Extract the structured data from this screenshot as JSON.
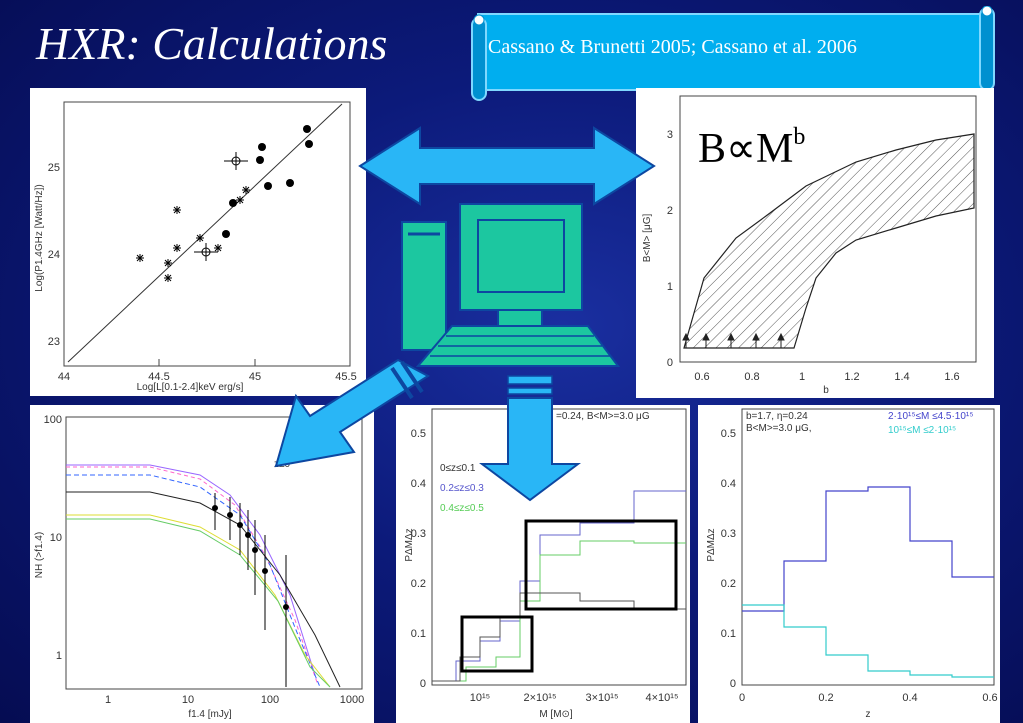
{
  "slide": {
    "title": "HXR: Calculations",
    "citation": "Cassano & Brunetti 2005; Cassano et al. 2006",
    "relation": {
      "base": "B∝M",
      "exponent": "b"
    }
  },
  "colors": {
    "background": "#0c1a7a",
    "scroll": "#00aeef",
    "arrow": "#29b6f6",
    "computer": "#1cc7a0"
  },
  "panels": {
    "top_left": {
      "xlabel": "Log[L[0.1-2.4]keV erg/s]",
      "ylabel": "Log(P1.4GHz [Watt/Hz])",
      "xticks": [
        "44",
        "44.5",
        "45",
        "45.5"
      ],
      "yticks": [
        "23",
        "24",
        "25"
      ]
    },
    "top_right": {
      "xlabel": "b",
      "ylabel": "B<M> [μG]",
      "xticks": [
        "0.6",
        "0.8",
        "1",
        "1.2",
        "1.4",
        "1.6"
      ],
      "yticks": [
        "0",
        "1",
        "2",
        "3"
      ]
    },
    "bottom_left": {
      "xlabel": "f1.4 [mJy]",
      "ylabel": "NH (>f1.4)",
      "xticks": [
        "1",
        "10",
        "100",
        "1000"
      ],
      "yticks": [
        "1",
        "10",
        "100"
      ],
      "annotation": "z≤0"
    },
    "bottom_mid": {
      "header": "=0.24, B<M>=3.0 μG",
      "xlabel": "M [M⊙]",
      "ylabel": "PΔMΔz",
      "xticks": [
        "10¹⁵",
        "2×10¹⁵",
        "3×10¹⁵",
        "4×10¹⁵"
      ],
      "yticks": [
        "0",
        "0.1",
        "0.2",
        "0.3",
        "0.4",
        "0.5"
      ],
      "legend": [
        "0≤z≤0.1",
        "0.2≤z≤0.3",
        "0.4≤z≤0.5"
      ]
    },
    "bottom_right": {
      "header_1": "b=1.7, η=0.24",
      "header_2": "B<M>=3.0 μG,",
      "xlabel": "z",
      "ylabel": "PΔMΔz",
      "xticks": [
        "0",
        "0.2",
        "0.4",
        "0.6"
      ],
      "yticks": [
        "0",
        "0.1",
        "0.2",
        "0.3",
        "0.4",
        "0.5"
      ],
      "legend": [
        "2·10¹⁵≤M ≤4.5·10¹⁵",
        "10¹⁵≤M ≤2·10¹⁵"
      ]
    }
  }
}
